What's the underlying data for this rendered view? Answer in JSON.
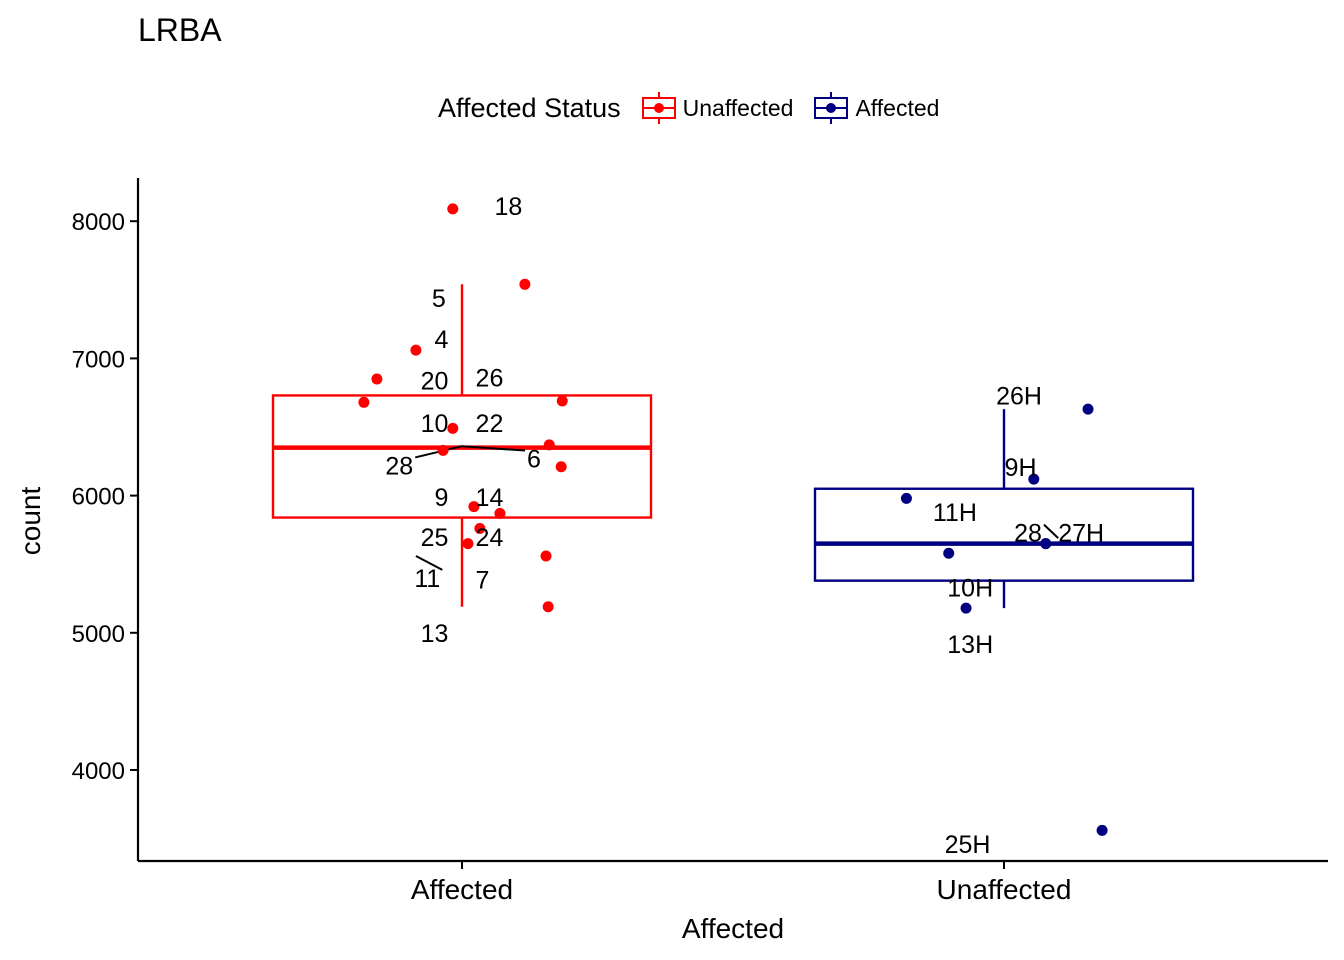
{
  "chart_data": {
    "type": "boxplot",
    "title": "LRBA",
    "xlabel": "Affected",
    "ylabel": "count",
    "ylim": [
      3400,
      8300
    ],
    "yticks": [
      4000,
      5000,
      6000,
      7000,
      8000
    ],
    "categories": [
      "Affected",
      "Unaffected"
    ],
    "legend": {
      "title": "Affected Status",
      "position": "top",
      "entries": [
        {
          "label": "Unaffected",
          "color": "#ff0000"
        },
        {
          "label": "Affected",
          "color": "#000080"
        }
      ]
    },
    "boxes": [
      {
        "category": "Affected",
        "color": "#ff0000",
        "whisker_low": 5190,
        "q1": 5840,
        "median": 6350,
        "q3": 6730,
        "whisker_high": 7540
      },
      {
        "category": "Unaffected",
        "color": "#000080",
        "whisker_low": 5180,
        "q1": 5380,
        "median": 5650,
        "q3": 6050,
        "whisker_high": 6630
      }
    ],
    "points": [
      {
        "label": "18",
        "group": 0,
        "jitter": -0.017,
        "y": 8090,
        "lx": 0.06,
        "ly": 8110,
        "anchor": "start"
      },
      {
        "label": "5",
        "group": 0,
        "jitter": 0.116,
        "y": 7540,
        "lx": -0.03,
        "ly": 7440,
        "anchor": "end"
      },
      {
        "label": "4",
        "group": 0,
        "jitter": -0.085,
        "y": 7060,
        "lx": -0.025,
        "ly": 7140,
        "anchor": "end"
      },
      {
        "label": "20",
        "group": 0,
        "jitter": -0.157,
        "y": 6850,
        "lx": -0.025,
        "ly": 6840,
        "anchor": "end"
      },
      {
        "label": "26",
        "group": 0,
        "jitter": 0.185,
        "y": 6690,
        "lx": 0.025,
        "ly": 6860,
        "anchor": "start"
      },
      {
        "label": "22",
        "group": 0,
        "jitter": -0.181,
        "y": 6680,
        "lx": 0.025,
        "ly": 6530,
        "anchor": "start"
      },
      {
        "label": "10",
        "group": 0,
        "jitter": -0.017,
        "y": 6490,
        "lx": -0.025,
        "ly": 6530,
        "anchor": "end"
      },
      {
        "label": "6",
        "group": 0,
        "jitter": 0.161,
        "y": 6370,
        "lx": 0.12,
        "ly": 6270,
        "anchor": "start",
        "leader_to": [
          0.0,
          6360
        ]
      },
      {
        "label": "28",
        "group": 0,
        "jitter": -0.035,
        "y": 6330,
        "lx": -0.09,
        "ly": 6220,
        "anchor": "end",
        "leader_to": [
          0.0,
          6360
        ]
      },
      {
        "label": "9",
        "group": 0,
        "jitter": 0.183,
        "y": 6210,
        "lx": -0.025,
        "ly": 5990,
        "anchor": "end"
      },
      {
        "label": "14",
        "group": 0,
        "jitter": 0.022,
        "y": 5920,
        "lx": 0.025,
        "ly": 5990,
        "anchor": "start"
      },
      {
        "label": "25",
        "group": 0,
        "jitter": 0.07,
        "y": 5870,
        "lx": -0.025,
        "ly": 5700,
        "anchor": "end"
      },
      {
        "label": "24",
        "group": 0,
        "jitter": 0.033,
        "y": 5760,
        "lx": 0.025,
        "ly": 5700,
        "anchor": "start"
      },
      {
        "label": "11",
        "group": 0,
        "jitter": 0.011,
        "y": 5650,
        "lx": -0.04,
        "ly": 5400,
        "anchor": "end",
        "leader_to": [
          -0.085,
          5560
        ]
      },
      {
        "label": "7",
        "group": 0,
        "jitter": 0.155,
        "y": 5560,
        "lx": 0.025,
        "ly": 5390,
        "anchor": "start"
      },
      {
        "label": "13",
        "group": 0,
        "jitter": 0.159,
        "y": 5190,
        "lx": -0.025,
        "ly": 5000,
        "anchor": "end"
      },
      {
        "label": "26H",
        "group": 1,
        "jitter": 0.155,
        "y": 6630,
        "lx": 0.07,
        "ly": 6730,
        "anchor": "end"
      },
      {
        "label": "9H",
        "group": 1,
        "jitter": 0.055,
        "y": 6120,
        "lx": 0.06,
        "ly": 6210,
        "anchor": "end"
      },
      {
        "label": "11H",
        "group": 1,
        "jitter": -0.18,
        "y": 5980,
        "lx": -0.05,
        "ly": 5880,
        "anchor": "end"
      },
      {
        "label": "28",
        "group": 1,
        "jitter": 0.077,
        "y": 5650,
        "lx": 0.07,
        "ly": 5730,
        "anchor": "end",
        "leader_to": [
          0.1,
          5690
        ]
      },
      {
        "label": "27H",
        "group": 1,
        "jitter": 0.077,
        "y": 5650,
        "lx": 0.1,
        "ly": 5730,
        "anchor": "start"
      },
      {
        "label": "10H",
        "group": 1,
        "jitter": -0.102,
        "y": 5580,
        "lx": -0.02,
        "ly": 5330,
        "anchor": "end"
      },
      {
        "label": "13H",
        "group": 1,
        "jitter": -0.07,
        "y": 5180,
        "lx": -0.02,
        "ly": 4920,
        "anchor": "end"
      },
      {
        "label": "25H",
        "group": 1,
        "jitter": 0.181,
        "y": 3560,
        "lx": -0.025,
        "ly": 3460,
        "anchor": "end"
      }
    ]
  }
}
